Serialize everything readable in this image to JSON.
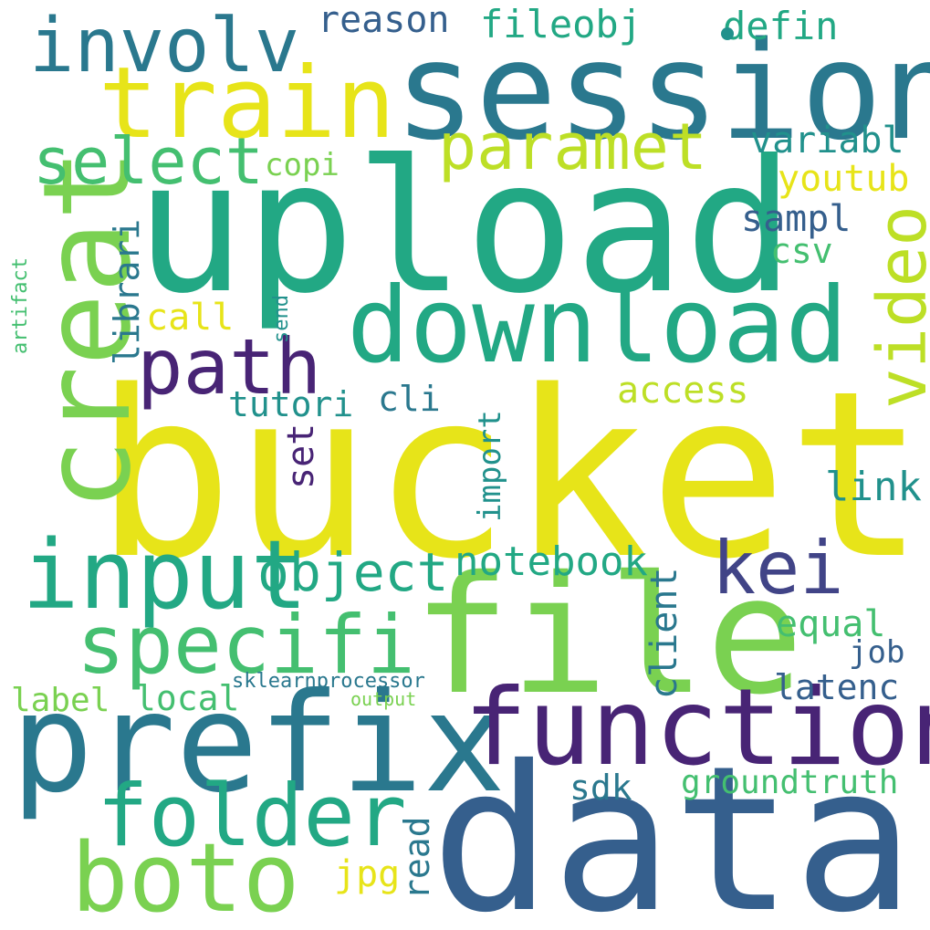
{
  "palette": {
    "yellow": "#e7e419",
    "lime": "#bddf26",
    "light_green": "#7ad151",
    "green": "#44bf70",
    "teal_green": "#22a884",
    "teal": "#21918c",
    "blue_teal": "#2a788e",
    "blue": "#355f8d",
    "indigo": "#414487",
    "purple": "#482475"
  },
  "words": [
    {
      "text": "bucket",
      "color": "#e7e419"
    },
    {
      "text": "data",
      "color": "#355f8d"
    },
    {
      "text": "upload",
      "color": "#22a884"
    },
    {
      "text": "file",
      "color": "#7ad151"
    },
    {
      "text": "session",
      "color": "#2a788e"
    },
    {
      "text": "prefix",
      "color": "#2a788e"
    },
    {
      "text": "download",
      "color": "#22a884"
    },
    {
      "text": "function",
      "color": "#482475"
    },
    {
      "text": "creat",
      "color": "#7ad151"
    },
    {
      "text": "train",
      "color": "#e7e419"
    },
    {
      "text": "boto",
      "color": "#7ad151"
    },
    {
      "text": "input",
      "color": "#22a884"
    },
    {
      "text": "folder",
      "color": "#22a884"
    },
    {
      "text": "specifi",
      "color": "#44bf70"
    },
    {
      "text": "involv",
      "color": "#2a788e"
    },
    {
      "text": "path",
      "color": "#482475"
    },
    {
      "text": "video",
      "color": "#bddf26"
    },
    {
      "text": "kei",
      "color": "#414487"
    },
    {
      "text": "paramet",
      "color": "#bddf26"
    },
    {
      "text": "select",
      "color": "#44bf70"
    },
    {
      "text": "object",
      "color": "#22a884"
    },
    {
      "text": "notebook",
      "color": "#22a884"
    },
    {
      "text": "reason",
      "color": "#355f8d"
    },
    {
      "text": "fileobj",
      "color": "#22a884"
    },
    {
      "text": "defin",
      "color": "#22a884"
    },
    {
      "text": "variabl",
      "color": "#21918c"
    },
    {
      "text": "youtub",
      "color": "#e7e419"
    },
    {
      "text": "sampl",
      "color": "#355f8d"
    },
    {
      "text": "csv",
      "color": "#44bf70"
    },
    {
      "text": "copi",
      "color": "#7ad151"
    },
    {
      "text": "librari",
      "color": "#2a788e"
    },
    {
      "text": "call",
      "color": "#e7e419"
    },
    {
      "text": "access",
      "color": "#bddf26"
    },
    {
      "text": "tutori",
      "color": "#21918c"
    },
    {
      "text": "cli",
      "color": "#2a788e"
    },
    {
      "text": "set",
      "color": "#482475"
    },
    {
      "text": "import",
      "color": "#21918c"
    },
    {
      "text": "link",
      "color": "#21918c"
    },
    {
      "text": "equal",
      "color": "#44bf70"
    },
    {
      "text": "client",
      "color": "#2a788e"
    },
    {
      "text": "job",
      "color": "#355f8d"
    },
    {
      "text": "latenc",
      "color": "#355f8d"
    },
    {
      "text": "label",
      "color": "#7ad151"
    },
    {
      "text": "local",
      "color": "#44bf70"
    },
    {
      "text": "sklearnprocessor",
      "color": "#2a788e"
    },
    {
      "text": "output",
      "color": "#7ad151"
    },
    {
      "text": "groundtruth",
      "color": "#44bf70"
    },
    {
      "text": "sdk",
      "color": "#2a788e"
    },
    {
      "text": "read",
      "color": "#2a788e"
    },
    {
      "text": "jpg",
      "color": "#e7e419"
    },
    {
      "text": "send",
      "color": "#21918c"
    },
    {
      "text": "artifact",
      "color": "#44bf70"
    }
  ]
}
